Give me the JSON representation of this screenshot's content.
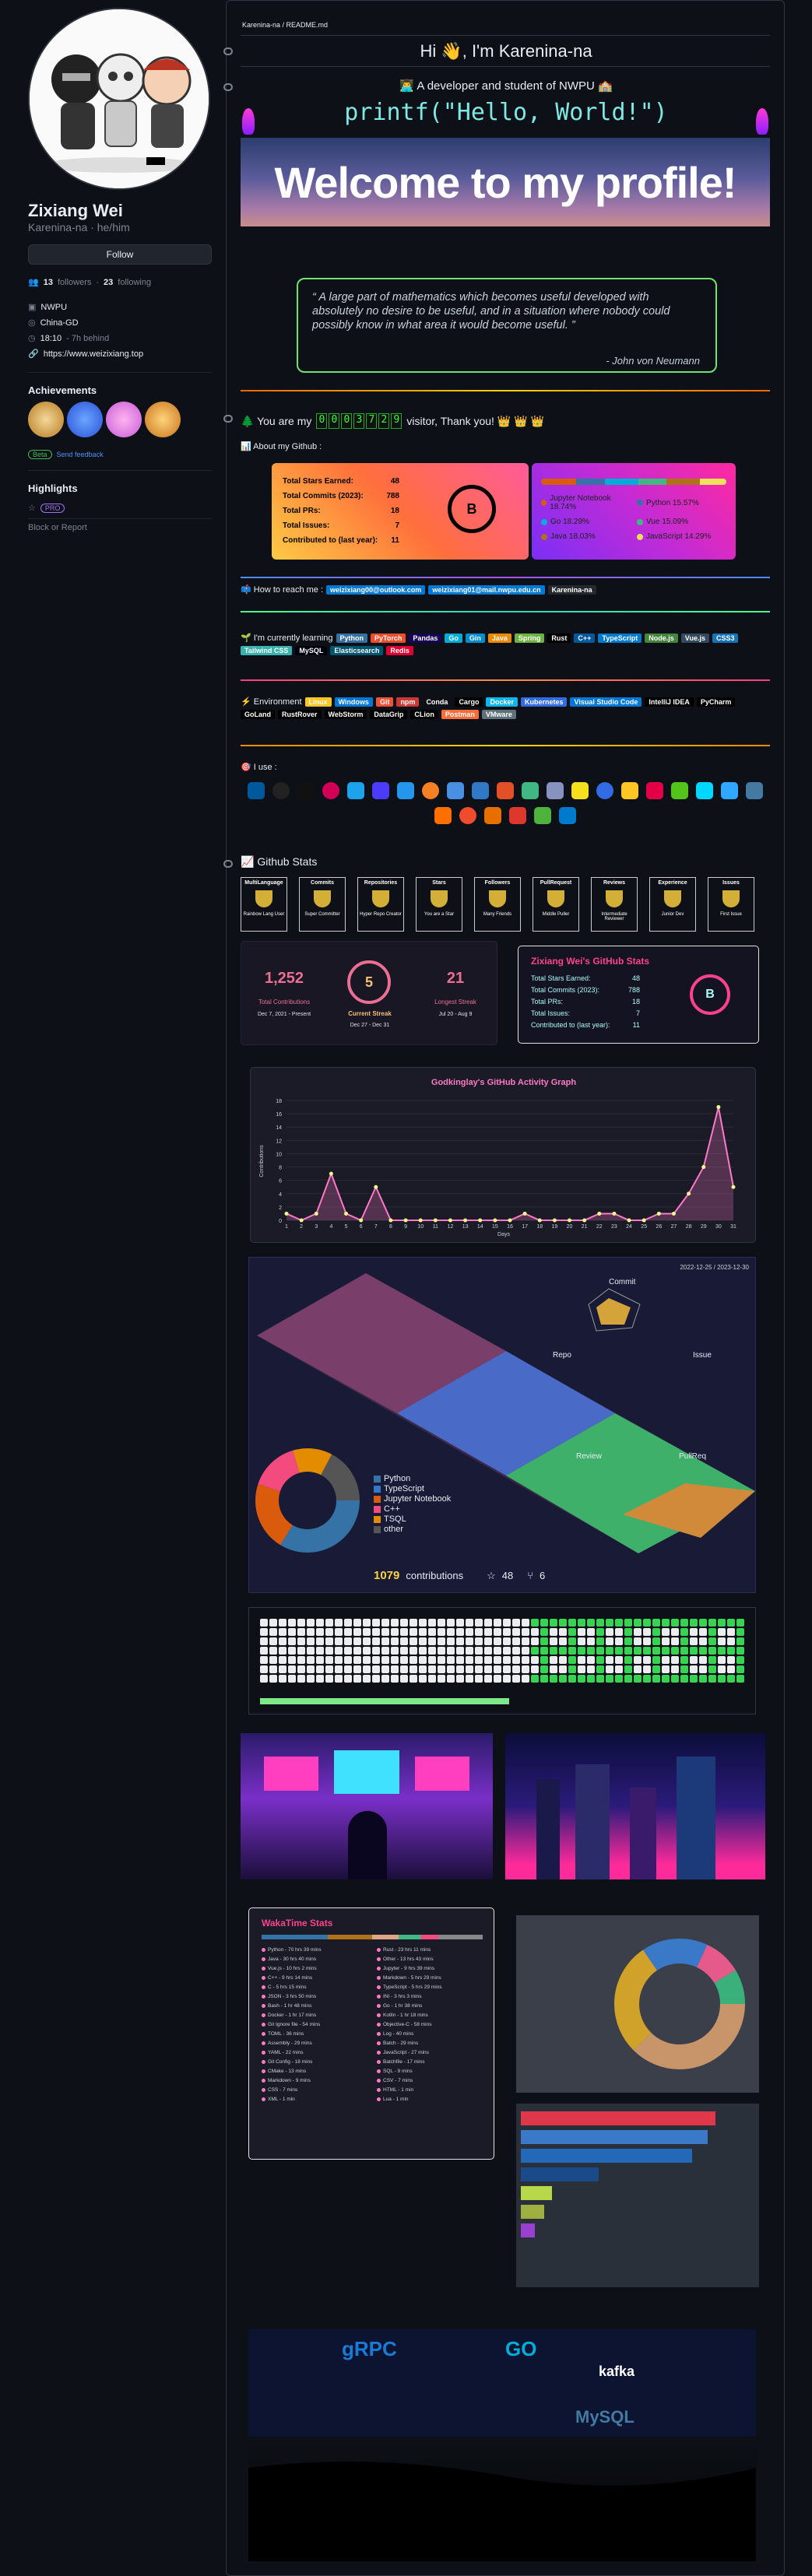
{
  "profile": {
    "name": "Zixiang Wei",
    "login": "Karenina-na",
    "pronouns": "he/him",
    "follow_label": "Follow",
    "followers": "13",
    "followers_label": "followers",
    "following": "23",
    "following_label": "following",
    "org": "NWPU",
    "location": "China-GD",
    "time": "18:10",
    "time_note": "- 7h behind",
    "website": "https://www.weizixiang.top"
  },
  "sidebar": {
    "achievements_title": "Achievements",
    "beta_label": "Beta",
    "feedback_label": "Send feedback",
    "highlights_title": "Highlights",
    "pro_label": "PRO",
    "block_label": "Block or Report"
  },
  "readme": {
    "breadcrumb": "Karenina-na / README.md",
    "greeting": "Hi 👋, I'm Karenina-na",
    "subtitle": "👨‍💻 A developer and student of NWPU 🏫",
    "code": "printf(\"Hello, World!\")",
    "banner": "Welcome to my profile!",
    "quote": "“ A large part of mathematics which becomes useful developed with absolutely no desire to be useful, and in a situation where nobody could possibly know in what area it would become useful. ”",
    "quote_author": "- John von Neumann",
    "visitor_prefix": "🌲 You are my",
    "visitor_digits": [
      "0",
      "0",
      "0",
      "3",
      "7",
      "2",
      "9"
    ],
    "visitor_suffix": "visitor, Thank you! 👑 👑 👑",
    "about": "📊 About my Github :",
    "reach": "📫 How to reach me :",
    "learning": "🌱 I'm currently learning",
    "environment": "⚡ Environment",
    "use": "🎯 I use :",
    "stats_title": "📈 Github Stats"
  },
  "github_stats": {
    "rows": [
      {
        "label": "Total Stars Earned:",
        "value": "48"
      },
      {
        "label": "Total Commits (2023):",
        "value": "788"
      },
      {
        "label": "Total PRs:",
        "value": "18"
      },
      {
        "label": "Total Issues:",
        "value": "7"
      },
      {
        "label": "Contributed to (last year):",
        "value": "11"
      }
    ],
    "grade": "B",
    "langs": [
      {
        "name": "Jupyter Notebook",
        "pct": "18.74%",
        "color": "#DA5B0B"
      },
      {
        "name": "Python",
        "pct": "15.57%",
        "color": "#3572A5"
      },
      {
        "name": "Go",
        "pct": "18.29%",
        "color": "#00ADD8"
      },
      {
        "name": "Vue",
        "pct": "15.09%",
        "color": "#41b883"
      },
      {
        "name": "Java",
        "pct": "18.03%",
        "color": "#b07219"
      },
      {
        "name": "JavaScript",
        "pct": "14.29%",
        "color": "#f1e05a"
      }
    ]
  },
  "contacts": [
    "weizixiang00@outlook.com",
    "weizixiang01@mail.nwpu.edu.cn",
    "Karenina-na"
  ],
  "learning_tags": [
    {
      "t": "Python",
      "c": "#3670A0"
    },
    {
      "t": "PyTorch",
      "c": "#EE4C2C"
    },
    {
      "t": "Pandas",
      "c": "#150458"
    },
    {
      "t": "Go",
      "c": "#00ADD8"
    },
    {
      "t": "Gin",
      "c": "#008ECF"
    },
    {
      "t": "Java",
      "c": "#ED8B00"
    },
    {
      "t": "Spring",
      "c": "#6DB33F"
    },
    {
      "t": "Rust",
      "c": "#000000"
    },
    {
      "t": "C++",
      "c": "#00599C"
    },
    {
      "t": "TypeScript",
      "c": "#007ACC"
    },
    {
      "t": "Node.js",
      "c": "#43853D"
    },
    {
      "t": "Vue.js",
      "c": "#35495E"
    },
    {
      "t": "CSS3",
      "c": "#1572B6"
    },
    {
      "t": "Tailwind CSS",
      "c": "#38B2AC"
    },
    {
      "t": "MySQL",
      "c": "#00000F"
    },
    {
      "t": "Elasticsearch",
      "c": "#005571"
    },
    {
      "t": "Redis",
      "c": "#DD0031"
    }
  ],
  "env_tags": [
    {
      "t": "Linux",
      "c": "#FCC624"
    },
    {
      "t": "Windows",
      "c": "#0078D6"
    },
    {
      "t": "Git",
      "c": "#F05033"
    },
    {
      "t": "npm",
      "c": "#CB3837"
    },
    {
      "t": "Conda",
      "c": "#342B029"
    },
    {
      "t": "Cargo",
      "c": "#000000"
    },
    {
      "t": "Docker",
      "c": "#0db7ed"
    },
    {
      "t": "Kubernetes",
      "c": "#326ce5"
    },
    {
      "t": "Visual Studio Code",
      "c": "#0078d7"
    },
    {
      "t": "IntelliJ IDEA",
      "c": "#000000"
    },
    {
      "t": "PyCharm",
      "c": "#000000"
    },
    {
      "t": "GoLand",
      "c": "#000000"
    },
    {
      "t": "RustRover",
      "c": "#000000"
    },
    {
      "t": "WebStorm",
      "c": "#000000"
    },
    {
      "t": "DataGrip",
      "c": "#000000"
    },
    {
      "t": "CLion",
      "c": "#000000"
    },
    {
      "t": "Postman",
      "c": "#FF6C37"
    },
    {
      "t": "VMware",
      "c": "#607078"
    }
  ],
  "trophies": [
    {
      "title": "MultiLanguage",
      "sub": "Rainbow Lang User"
    },
    {
      "title": "Commits",
      "sub": "Super Committer"
    },
    {
      "title": "Repositories",
      "sub": "Hyper Repo Creator"
    },
    {
      "title": "Stars",
      "sub": "You are a Star"
    },
    {
      "title": "Followers",
      "sub": "Many Friends"
    },
    {
      "title": "PullRequest",
      "sub": "Middle Puller"
    },
    {
      "title": "Reviews",
      "sub": "Intermediate Reviewer"
    },
    {
      "title": "Experience",
      "sub": "Junior Dev"
    },
    {
      "title": "Issues",
      "sub": "First Issue"
    }
  ],
  "streak": {
    "total": "1,252",
    "total_label": "Total Contributions",
    "total_range": "Dec 7, 2021 - Present",
    "current": "5",
    "current_label": "Current Streak",
    "current_range": "Dec 27 - Dec 31",
    "longest": "21",
    "longest_label": "Longest Streak",
    "longest_range": "Jul 20 - Aug 9"
  },
  "stats_card": {
    "title": "Zixiang Wei's GitHub Stats",
    "grade": "B"
  },
  "chart_data": {
    "type": "area",
    "title": "Godkinglay's GitHub Activity Graph",
    "xlabel": "Days",
    "ylabel": "Contributions",
    "x": [
      1,
      2,
      3,
      4,
      5,
      6,
      7,
      8,
      9,
      10,
      11,
      12,
      13,
      14,
      15,
      16,
      17,
      18,
      19,
      20,
      21,
      22,
      23,
      24,
      25,
      26,
      27,
      28,
      29,
      30,
      31
    ],
    "values": [
      1,
      0,
      1,
      7,
      1,
      0,
      5,
      0,
      0,
      0,
      0,
      0,
      0,
      0,
      0,
      0,
      1,
      0,
      0,
      0,
      0,
      1,
      1,
      0,
      0,
      1,
      1,
      4,
      8,
      17,
      5
    ],
    "ylim": [
      0,
      18
    ],
    "yticks": [
      0,
      2,
      4,
      6,
      8,
      10,
      12,
      14,
      16,
      18
    ]
  },
  "metrics3d": {
    "date": "2022-12-25 / 2023-12-30",
    "radar": [
      "Commit",
      "Issue",
      "PullReq",
      "Review",
      "Repo"
    ],
    "legend": [
      "Python",
      "TypeScript",
      "Jupyter Notebook",
      "C++",
      "TSQL",
      "other"
    ],
    "contrib": "1079",
    "contrib_label": "contributions",
    "stars": "48",
    "forks": "6"
  },
  "wakatime": {
    "title": "WakaTime Stats",
    "items": [
      "Python - 70 hrs 39 mins",
      "Java - 30 hrs 40 mins",
      "Vue.js - 10 hrs 2 mins",
      "C++ - 9 hrs 14 mins",
      "C - 5 hrs 15 mins",
      "JSON - 3 hrs 50 mins",
      "Bash - 1 hr 48 mins",
      "Docker - 1 hr 17 mins",
      "Git Ignore file - 54 mins",
      "TOML - 36 mins",
      "Assembly - 29 mins",
      "YAML - 22 mins",
      "Git Config - 18 mins",
      "CMake - 13 mins",
      "Markdown - 9 mins",
      "CSS - 7 mins",
      "XML - 1 min",
      "Rust - 23 hrs 11 mins",
      "Other - 13 hrs 43 mins",
      "Jupyter - 9 hrs 39 mins",
      "Markdown - 5 hrs 29 mins",
      "TypeScript - 5 hrs 29 mins",
      "INI - 3 hrs 3 mins",
      "Go - 1 hr 38 mins",
      "Kotlin - 1 hr 18 mins",
      "Objective-C - 58 mins",
      "Log - 40 mins",
      "Batch - 29 mins",
      "JavaScript - 27 mins",
      "Batchfile - 17 mins",
      "SQL - 9 mins",
      "CSV - 7 mins",
      "HTML - 1 min",
      "Lua - 1 min"
    ]
  }
}
